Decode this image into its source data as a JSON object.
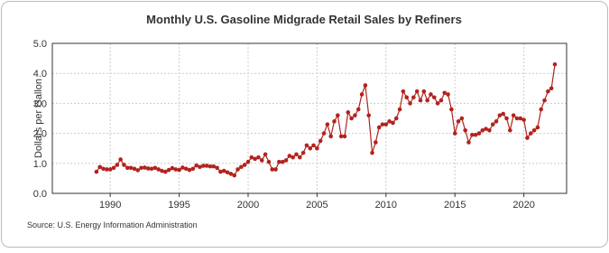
{
  "chart_data": {
    "type": "line",
    "title": "Monthly U.S. Gasoline Midgrade Retail Sales by Refiners",
    "y_label": "Dollars per Gallon",
    "source": "Source: U.S. Energy Information Administration",
    "x": [
      1989.0,
      1989.25,
      1989.5,
      1989.75,
      1990.0,
      1990.25,
      1990.5,
      1990.75,
      1991.0,
      1991.25,
      1991.5,
      1991.75,
      1992.0,
      1992.25,
      1992.5,
      1992.75,
      1993.0,
      1993.25,
      1993.5,
      1993.75,
      1994.0,
      1994.25,
      1994.5,
      1994.75,
      1995.0,
      1995.25,
      1995.5,
      1995.75,
      1996.0,
      1996.25,
      1996.5,
      1996.75,
      1997.0,
      1997.25,
      1997.5,
      1997.75,
      1998.0,
      1998.25,
      1998.5,
      1998.75,
      1999.0,
      1999.25,
      1999.5,
      1999.75,
      2000.0,
      2000.25,
      2000.5,
      2000.75,
      2001.0,
      2001.25,
      2001.5,
      2001.75,
      2002.0,
      2002.25,
      2002.5,
      2002.75,
      2003.0,
      2003.25,
      2003.5,
      2003.75,
      2004.0,
      2004.25,
      2004.5,
      2004.75,
      2005.0,
      2005.25,
      2005.5,
      2005.75,
      2006.0,
      2006.25,
      2006.5,
      2006.75,
      2007.0,
      2007.25,
      2007.5,
      2007.75,
      2008.0,
      2008.25,
      2008.5,
      2008.75,
      2009.0,
      2009.25,
      2009.5,
      2009.75,
      2010.0,
      2010.25,
      2010.5,
      2010.75,
      2011.0,
      2011.25,
      2011.5,
      2011.75,
      2012.0,
      2012.25,
      2012.5,
      2012.75,
      2013.0,
      2013.25,
      2013.5,
      2013.75,
      2014.0,
      2014.25,
      2014.5,
      2014.75,
      2015.0,
      2015.25,
      2015.5,
      2015.75,
      2016.0,
      2016.25,
      2016.5,
      2016.75,
      2017.0,
      2017.25,
      2017.5,
      2017.75,
      2018.0,
      2018.25,
      2018.5,
      2018.75,
      2019.0,
      2019.25,
      2019.5,
      2019.75,
      2020.0,
      2020.25,
      2020.5,
      2020.75,
      2021.0,
      2021.25,
      2021.5,
      2021.75,
      2022.0,
      2022.25
    ],
    "series": [
      {
        "name": "Midgrade",
        "color": "#b2231e",
        "values": [
          0.72,
          0.88,
          0.82,
          0.8,
          0.8,
          0.85,
          0.95,
          1.13,
          0.95,
          0.85,
          0.85,
          0.82,
          0.77,
          0.85,
          0.86,
          0.83,
          0.82,
          0.85,
          0.8,
          0.75,
          0.72,
          0.78,
          0.84,
          0.8,
          0.78,
          0.86,
          0.82,
          0.78,
          0.82,
          0.93,
          0.88,
          0.92,
          0.92,
          0.9,
          0.9,
          0.85,
          0.72,
          0.75,
          0.7,
          0.65,
          0.6,
          0.8,
          0.88,
          0.95,
          1.05,
          1.2,
          1.15,
          1.2,
          1.1,
          1.3,
          1.05,
          0.8,
          0.8,
          1.05,
          1.05,
          1.1,
          1.25,
          1.2,
          1.3,
          1.2,
          1.35,
          1.6,
          1.5,
          1.6,
          1.5,
          1.75,
          2.0,
          2.3,
          1.9,
          2.4,
          2.6,
          1.9,
          1.9,
          2.7,
          2.5,
          2.6,
          2.8,
          3.3,
          3.6,
          2.6,
          1.35,
          1.7,
          2.2,
          2.3,
          2.3,
          2.4,
          2.35,
          2.5,
          2.8,
          3.4,
          3.2,
          3.0,
          3.2,
          3.4,
          3.1,
          3.4,
          3.1,
          3.3,
          3.2,
          3.0,
          3.1,
          3.35,
          3.3,
          2.8,
          2.0,
          2.4,
          2.5,
          2.1,
          1.7,
          1.95,
          1.95,
          2.0,
          2.1,
          2.15,
          2.1,
          2.3,
          2.4,
          2.6,
          2.65,
          2.5,
          2.1,
          2.6,
          2.5,
          2.5,
          2.45,
          1.85,
          2.0,
          2.1,
          2.2,
          2.8,
          3.1,
          3.4,
          3.5,
          4.3
        ]
      }
    ],
    "xlim": [
      1985.8,
      2023.1
    ],
    "xticks": [
      1990,
      1995,
      2000,
      2005,
      2010,
      2015,
      2020
    ],
    "ylim": [
      0,
      5
    ],
    "yticks": [
      {
        "value": 0,
        "label": "0.0"
      },
      {
        "value": 1,
        "label": "1.0"
      },
      {
        "value": 2,
        "label": "2.0"
      },
      {
        "value": 3,
        "label": "3.0"
      },
      {
        "value": 4,
        "label": "4.0"
      },
      {
        "value": 5,
        "label": "5.0"
      }
    ],
    "grid": true
  }
}
